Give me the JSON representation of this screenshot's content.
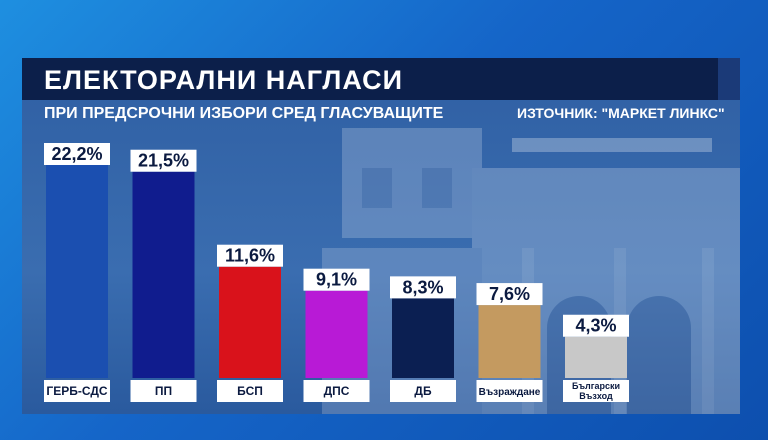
{
  "header": {
    "title": "ЕЛЕКТОРАЛНИ НАГЛАСИ",
    "subtitle": "ПРИ ПРЕДСРОЧНИ ИЗБОРИ СРЕД ГЛАСУВАЩИТЕ",
    "source": "ИЗТОЧНИК: \"МАРКЕТ ЛИНКС\""
  },
  "chart_data": {
    "type": "bar",
    "categories": [
      "ГЕРБ-СДС",
      "ПП",
      "БСП",
      "ДПС",
      "ДБ",
      "Възраждане",
      "Български Възход"
    ],
    "values": [
      22.2,
      21.5,
      11.6,
      9.1,
      8.3,
      7.6,
      4.3
    ],
    "value_labels": [
      "22,2%",
      "21,5%",
      "11,6%",
      "9,1%",
      "8,3%",
      "7,6%",
      "4,3%"
    ],
    "colors": [
      "#1b4fb0",
      "#101c8e",
      "#d9121b",
      "#b81ad6",
      "#0b1f52",
      "#c49a60",
      "#c8c8c8"
    ],
    "ylim": [
      0,
      22.2
    ],
    "grid": false,
    "legend": "none"
  }
}
